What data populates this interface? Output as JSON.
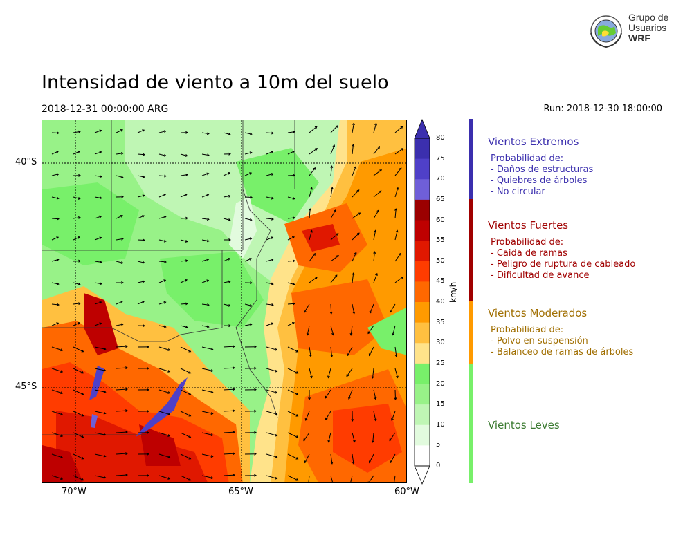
{
  "header": {
    "title": "Intensidad de viento a 10m del suelo",
    "valid_date": "2018-12-31 00:00:00 ARG",
    "run": "Run: 2018-12-30 18:00:00"
  },
  "logo": {
    "line1": "Grupo de",
    "line2": "Usuarios",
    "line3": "WRF"
  },
  "map": {
    "lat_labels": [
      "40°S",
      "45°S"
    ],
    "lon_labels": [
      "70°W",
      "65°W",
      "60°W"
    ]
  },
  "colorbar": {
    "unit": "km/h",
    "ticks": [
      "80",
      "75",
      "70",
      "65",
      "60",
      "55",
      "50",
      "45",
      "40",
      "35",
      "30",
      "25",
      "20",
      "15",
      "10",
      "5",
      "0"
    ],
    "colors": [
      "#3b2fae",
      "#4f40c8",
      "#6f5fd8",
      "#9b0000",
      "#be0000",
      "#e01800",
      "#ff3c00",
      "#ff6800",
      "#ff9a00",
      "#ffc040",
      "#ffe38a",
      "#78f06a",
      "#98f288",
      "#bff6b4",
      "#e2fbde",
      "#ffffff"
    ]
  },
  "categories": [
    {
      "title": "Vientos Extremos",
      "color": "#3b2fae",
      "lines": [
        "Probabilidad de:",
        "- Daños de estructuras",
        "- Quiebres de árboles",
        "- No circular"
      ]
    },
    {
      "title": "Vientos Fuertes",
      "color": "#a00000",
      "lines": [
        "Probabilidad de:",
        "- Caida de ramas",
        "- Peligro de ruptura de cableado",
        "- Dificultad de avance"
      ]
    },
    {
      "title": "Vientos Moderados",
      "color": "#a06e00",
      "lines": [
        "Probabilidad de:",
        "- Polvo en suspensión",
        "- Balanceo de ramas de árboles"
      ]
    },
    {
      "title": "Vientos Leves",
      "color": "#3a7a30",
      "lines": []
    }
  ]
}
